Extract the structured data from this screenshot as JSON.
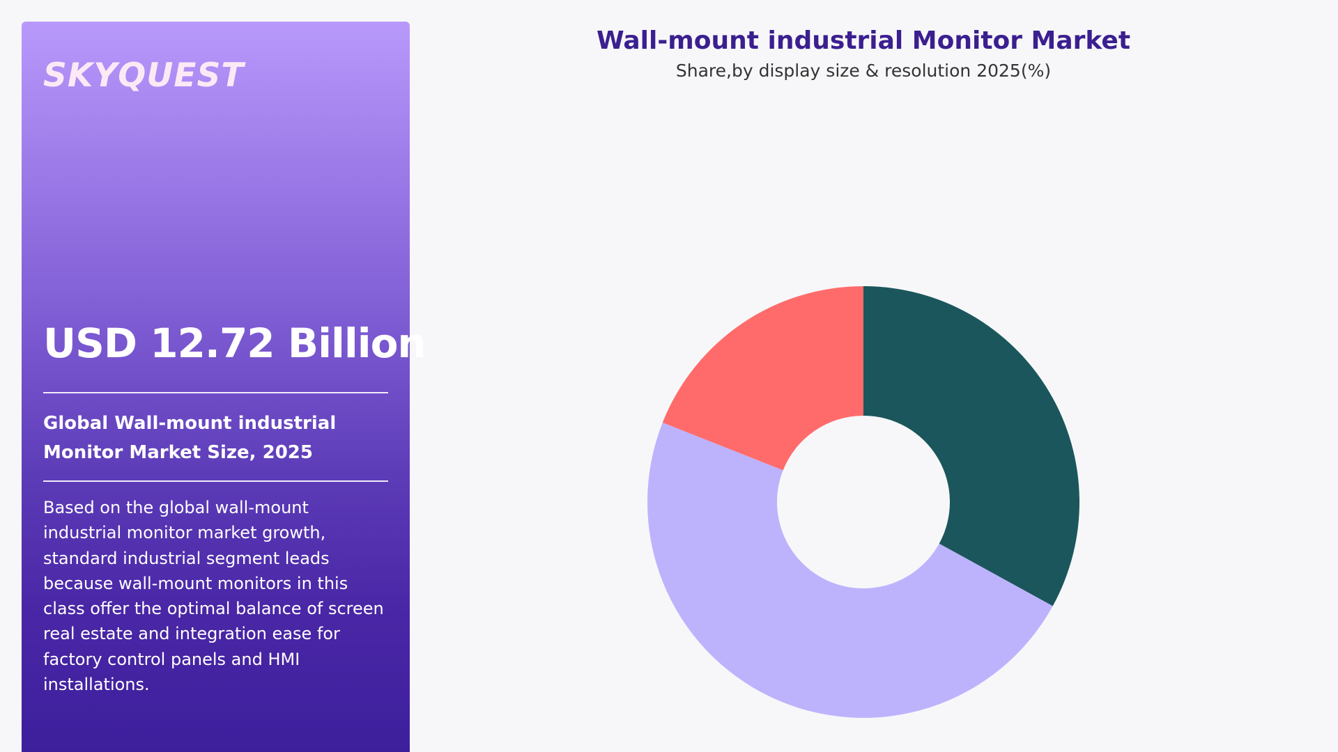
{
  "brand": {
    "logo_text": "SKYQUEST"
  },
  "side_panel": {
    "market_size": "USD 12.72 Billion",
    "size_caption": "Global Wall-mount industrial Monitor Market Size, 2025",
    "description": "Based on the global wall-mount industrial monitor market growth, standard industrial segment leads because wall-mount monitors in this class offer the optimal balance of screen real estate and integration ease for factory control panels and HMI installations."
  },
  "colors": {
    "panel_top": "#b899fb",
    "panel_bottom": "#3d1f9c",
    "title": "#3b1f8f"
  },
  "chart_data": {
    "type": "pie",
    "title": "Wall-mount industrial Monitor Market",
    "subtitle": "Share,by display size & resolution 2025(%)",
    "donut": true,
    "start_angle_deg": 0,
    "direction": "clockwise",
    "slices": [
      {
        "value": 33,
        "color": "#1b565c"
      },
      {
        "value": 48,
        "color": "#bdb3fd"
      },
      {
        "value": 19,
        "color": "#ff6b6b"
      }
    ]
  }
}
